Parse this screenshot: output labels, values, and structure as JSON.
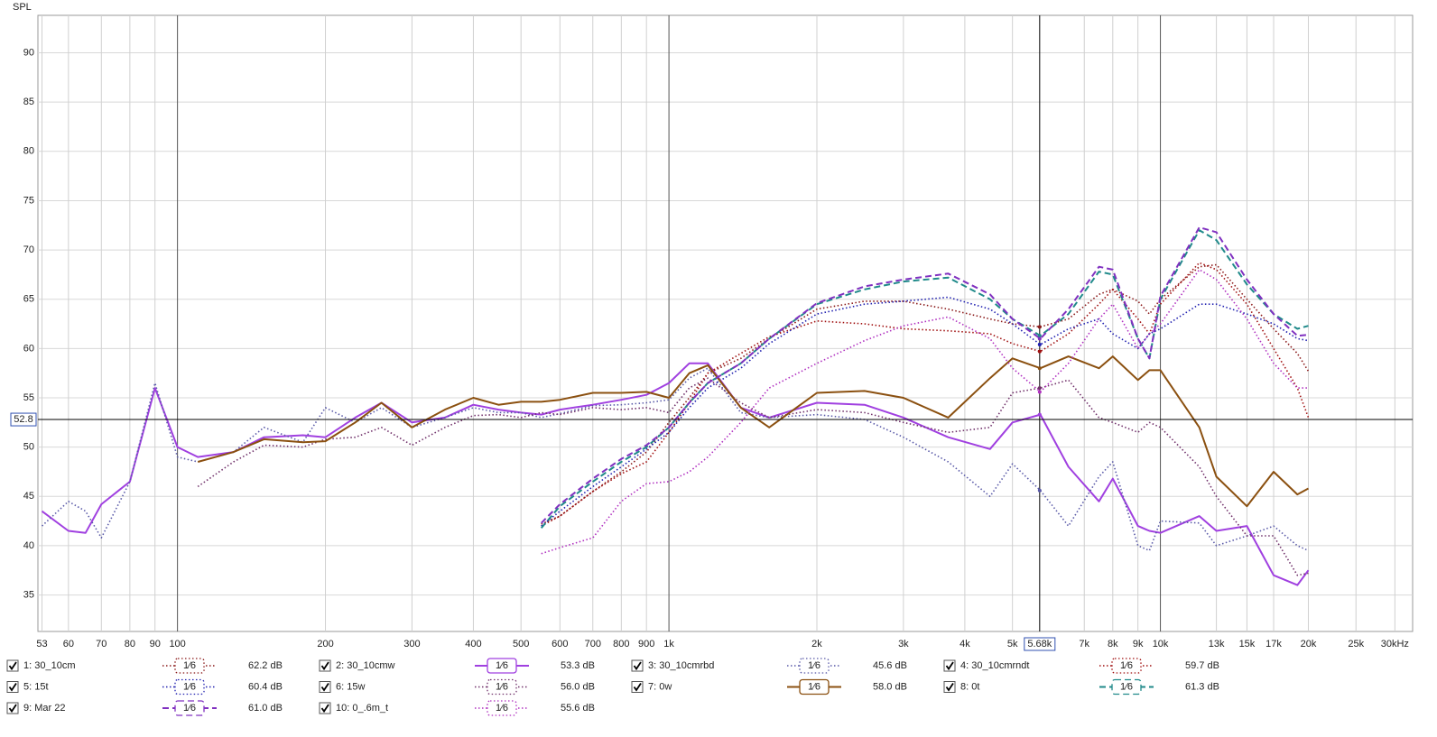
{
  "chart_data": {
    "type": "line",
    "y_label": "SPL",
    "log_x": true,
    "grid": true,
    "xlim": [
      52,
      32600
    ],
    "ylim": [
      31.3,
      93.8
    ],
    "xticks": [
      53,
      60,
      70,
      80,
      90,
      100,
      200,
      300,
      400,
      500,
      600,
      700,
      800,
      900,
      {
        "value": 1000,
        "label": "1k"
      },
      {
        "value": 2000,
        "label": "2k"
      },
      {
        "value": 3000,
        "label": "3k"
      },
      {
        "value": 4000,
        "label": "4k"
      },
      {
        "value": 5000,
        "label": "5k"
      },
      {
        "value": 7000,
        "label": "7k"
      },
      {
        "value": 8000,
        "label": "8k"
      },
      {
        "value": 9000,
        "label": "9k"
      },
      {
        "value": 10000,
        "label": "10k"
      },
      {
        "value": 13000,
        "label": "13k"
      },
      {
        "value": 15000,
        "label": "15k"
      },
      {
        "value": 17000,
        "label": "17k"
      },
      {
        "value": 20000,
        "label": "20k"
      },
      {
        "value": 25000,
        "label": "25k"
      },
      {
        "value": 30000,
        "label": "30kHz"
      }
    ],
    "yticks": [
      35,
      40,
      45,
      50,
      55,
      60,
      65,
      70,
      75,
      80,
      85,
      90
    ],
    "cursor": {
      "x": {
        "value": 5680,
        "label": "5.68k"
      },
      "y": 52.8
    },
    "x": [
      53,
      60,
      65,
      70,
      80,
      90,
      100,
      110,
      130,
      150,
      180,
      200,
      230,
      260,
      300,
      350,
      400,
      450,
      500,
      550,
      600,
      700,
      800,
      900,
      1000,
      1100,
      1200,
      1400,
      1600,
      2000,
      2500,
      3000,
      3700,
      4500,
      5000,
      5700,
      6500,
      7500,
      8000,
      9000,
      9500,
      10000,
      12000,
      13000,
      15000,
      17000,
      19000,
      20000
    ],
    "series": [
      {
        "name": "1: 30_10cm",
        "color": "#8b1a1a",
        "style": "dotted",
        "checked": true,
        "smoothing": "1⁄6",
        "cursor_value": 62.2,
        "cursor_label": "62.2 dB",
        "values": [
          null,
          null,
          null,
          null,
          null,
          null,
          null,
          null,
          null,
          null,
          null,
          null,
          null,
          null,
          null,
          null,
          null,
          null,
          null,
          42.2,
          43,
          45.5,
          47.5,
          49.5,
          52.5,
          55,
          57.5,
          59,
          61,
          64,
          64.8,
          64.8,
          64,
          63,
          62.5,
          62.2,
          63,
          65.5,
          66,
          64.8,
          63.5,
          65,
          68.3,
          68.5,
          65,
          62,
          59.5,
          57.7
        ]
      },
      {
        "name": "2: 30_10cmw",
        "color": "#a040e0",
        "style": "solid",
        "checked": true,
        "smoothing": "1⁄6",
        "cursor_value": 53.3,
        "cursor_label": "53.3 dB",
        "values": [
          43.5,
          41.5,
          41.3,
          44.2,
          46.5,
          56,
          50,
          49,
          49.5,
          51,
          51.2,
          51,
          53,
          54.5,
          52.5,
          53,
          54.3,
          53.8,
          53.5,
          53.3,
          53.8,
          54.3,
          54.8,
          55.3,
          56.5,
          58.5,
          58.5,
          54,
          53,
          54.5,
          54.3,
          53,
          51,
          49.8,
          52.5,
          53.3,
          48,
          44.5,
          46.8,
          42,
          41.5,
          41.3,
          43,
          41.5,
          42,
          37,
          36,
          37.5
        ]
      },
      {
        "name": "3: 30_10cmrbd",
        "color": "#5a5aa8",
        "style": "dotted",
        "checked": true,
        "smoothing": "1⁄6",
        "cursor_value": 45.6,
        "cursor_label": "45.6 dB",
        "values": [
          42,
          44.5,
          43.5,
          40.8,
          46.5,
          56.5,
          49,
          48.5,
          49.5,
          52,
          50.5,
          54,
          52.5,
          54,
          52,
          53,
          54,
          53.5,
          53.5,
          53,
          53.4,
          54.2,
          54.3,
          54.5,
          54.8,
          57,
          58,
          53.5,
          53,
          53.3,
          52.8,
          51,
          48.5,
          45,
          48.3,
          45.6,
          42,
          47,
          48.5,
          40,
          39.5,
          42.5,
          42.3,
          40,
          41,
          42,
          40,
          39.5
        ]
      },
      {
        "name": "4: 30_10cmrndt",
        "color": "#a01010",
        "style": "dotted",
        "checked": true,
        "smoothing": "1⁄6",
        "cursor_value": 59.7,
        "cursor_label": "59.7 dB",
        "values": [
          null,
          null,
          null,
          null,
          null,
          null,
          null,
          null,
          null,
          null,
          null,
          null,
          null,
          null,
          null,
          null,
          null,
          null,
          null,
          42,
          43,
          45.5,
          47.3,
          48.5,
          51.5,
          54.5,
          57.5,
          59.5,
          61.2,
          62.8,
          62.5,
          62,
          61.8,
          61.5,
          60.5,
          59.7,
          61.5,
          64.5,
          66,
          63,
          61.5,
          64.5,
          68.7,
          68,
          64.5,
          60,
          56,
          53
        ]
      },
      {
        "name": "5: 15t",
        "color": "#2020b0",
        "style": "dotted",
        "checked": true,
        "smoothing": "1⁄6",
        "cursor_value": 60.4,
        "cursor_label": "60.4 dB",
        "values": [
          null,
          null,
          null,
          null,
          null,
          null,
          null,
          null,
          null,
          null,
          null,
          null,
          null,
          null,
          null,
          null,
          null,
          null,
          null,
          42,
          43.5,
          46,
          48,
          49.8,
          51.5,
          54,
          56,
          58,
          60.5,
          63.5,
          64.5,
          64.8,
          65.2,
          64,
          62.5,
          60.4,
          62,
          63,
          61.5,
          60,
          61.5,
          62,
          64.5,
          64.5,
          63.5,
          62.5,
          61,
          60.8
        ]
      },
      {
        "name": "6: 15w",
        "color": "#70306a",
        "style": "dotted",
        "checked": true,
        "smoothing": "1⁄6",
        "cursor_value": 56.0,
        "cursor_label": "56.0 dB",
        "values": [
          null,
          null,
          null,
          null,
          null,
          null,
          null,
          46,
          48.5,
          50.2,
          50,
          50.8,
          51,
          52,
          50.2,
          52,
          53.2,
          53.3,
          53,
          53.5,
          53.3,
          54,
          53.8,
          54,
          53.5,
          56,
          57,
          54.5,
          53,
          53.8,
          53.5,
          52.5,
          51.5,
          52,
          55.5,
          56,
          56.8,
          53,
          52.5,
          51.5,
          52.5,
          52,
          48,
          45,
          41,
          41,
          37,
          37.2
        ]
      },
      {
        "name": "7: 0w",
        "color": "#8b5010",
        "style": "solid",
        "checked": true,
        "smoothing": "1⁄6",
        "cursor_value": 58.0,
        "cursor_label": "58.0 dB",
        "values": [
          null,
          null,
          null,
          null,
          null,
          null,
          null,
          48.5,
          49.5,
          50.8,
          50.5,
          50.6,
          52.5,
          54.5,
          52,
          53.8,
          55,
          54.3,
          54.6,
          54.6,
          54.8,
          55.5,
          55.5,
          55.6,
          55,
          57.5,
          58.3,
          54,
          52,
          55.5,
          55.7,
          55,
          53,
          57,
          59,
          58,
          59.2,
          58,
          59.2,
          56.8,
          57.8,
          57.8,
          52,
          47,
          44,
          47.5,
          45.2,
          45.8
        ]
      },
      {
        "name": "8: 0t",
        "color": "#208a8a",
        "style": "dashed",
        "checked": true,
        "smoothing": "1⁄6",
        "cursor_value": 61.3,
        "cursor_label": "61.3 dB",
        "values": [
          null,
          null,
          null,
          null,
          null,
          null,
          null,
          null,
          null,
          null,
          null,
          null,
          null,
          null,
          null,
          null,
          null,
          null,
          null,
          41.8,
          44,
          46.5,
          48.5,
          50,
          52,
          54.5,
          56.5,
          58.5,
          61,
          64.5,
          66,
          66.8,
          67.2,
          65,
          63,
          61.3,
          63.5,
          67.8,
          67.5,
          61,
          59,
          65,
          72,
          71,
          66.5,
          63.5,
          62,
          62.3
        ]
      },
      {
        "name": "9: Mar 22",
        "color": "#8030c0",
        "style": "dashed",
        "checked": true,
        "smoothing": "1⁄6",
        "cursor_value": 61.0,
        "cursor_label": "61.0 dB",
        "values": [
          null,
          null,
          null,
          null,
          null,
          null,
          null,
          null,
          null,
          null,
          null,
          null,
          null,
          null,
          null,
          null,
          null,
          null,
          null,
          42.3,
          44.2,
          46.8,
          48.8,
          50.2,
          52,
          54.5,
          56.5,
          58.5,
          61,
          64.6,
          66.3,
          67,
          67.6,
          65.5,
          63,
          61,
          64,
          68.3,
          68,
          61,
          59,
          65.3,
          72.3,
          71.8,
          67,
          63.5,
          61.3,
          61.4
        ]
      },
      {
        "name": "10: 0_.6m_t",
        "color": "#b030c0",
        "style": "dotted",
        "checked": true,
        "smoothing": "1⁄6",
        "cursor_value": 55.6,
        "cursor_label": "55.6 dB",
        "values": [
          null,
          null,
          null,
          null,
          null,
          null,
          null,
          null,
          null,
          null,
          null,
          null,
          null,
          null,
          null,
          null,
          null,
          null,
          null,
          39.2,
          39.8,
          40.8,
          44.5,
          46.3,
          46.5,
          47.5,
          49,
          52.5,
          56,
          58.5,
          60.8,
          62.3,
          63.2,
          61,
          58,
          55.6,
          58.5,
          63,
          64.5,
          60,
          61.5,
          62.5,
          68,
          67,
          63,
          58.5,
          56,
          56
        ]
      }
    ]
  }
}
